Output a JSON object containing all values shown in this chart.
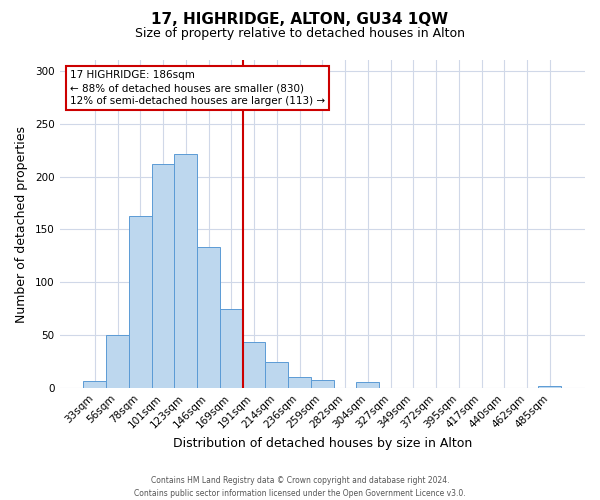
{
  "title": "17, HIGHRIDGE, ALTON, GU34 1QW",
  "subtitle": "Size of property relative to detached houses in Alton",
  "xlabel": "Distribution of detached houses by size in Alton",
  "ylabel": "Number of detached properties",
  "footer_line1": "Contains HM Land Registry data © Crown copyright and database right 2024.",
  "footer_line2": "Contains public sector information licensed under the Open Government Licence v3.0.",
  "bin_labels": [
    "33sqm",
    "56sqm",
    "78sqm",
    "101sqm",
    "123sqm",
    "146sqm",
    "169sqm",
    "191sqm",
    "214sqm",
    "236sqm",
    "259sqm",
    "282sqm",
    "304sqm",
    "327sqm",
    "349sqm",
    "372sqm",
    "395sqm",
    "417sqm",
    "440sqm",
    "462sqm",
    "485sqm"
  ],
  "bar_values": [
    7,
    50,
    163,
    212,
    221,
    133,
    75,
    44,
    25,
    11,
    8,
    0,
    6,
    0,
    0,
    0,
    0,
    0,
    0,
    0,
    2
  ],
  "bar_color": "#BDD7EE",
  "bar_edge_color": "#5B9BD5",
  "vline_color": "#CC0000",
  "annotation_line1": "17 HIGHRIDGE: 186sqm",
  "annotation_line2": "← 88% of detached houses are smaller (830)",
  "annotation_line3": "12% of semi-detached houses are larger (113) →",
  "box_facecolor": "white",
  "box_edgecolor": "#CC0000",
  "ylim": [
    0,
    310
  ],
  "yticks": [
    0,
    50,
    100,
    150,
    200,
    250,
    300
  ],
  "grid_color": "#D0D8E8",
  "title_fontsize": 11,
  "subtitle_fontsize": 9,
  "axis_label_fontsize": 9,
  "tick_fontsize": 7.5,
  "footer_fontsize": 5.5
}
